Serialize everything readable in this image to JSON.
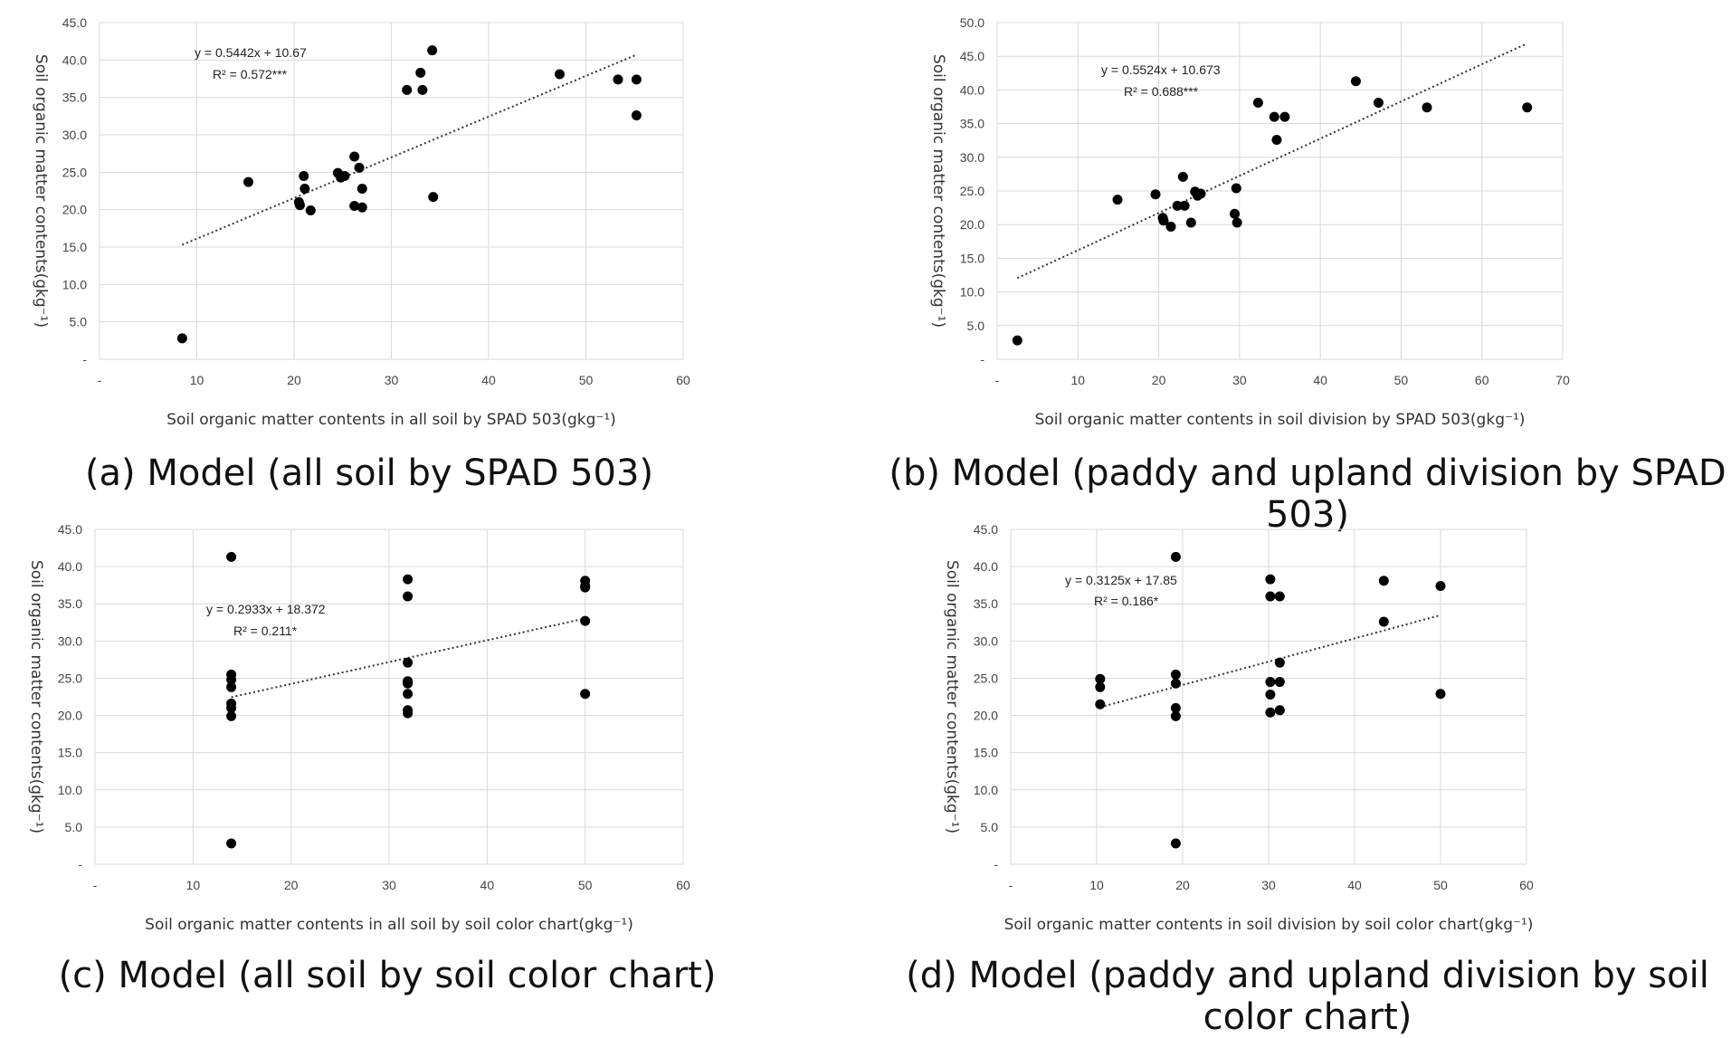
{
  "colors": {
    "grid": "#d9d9d9",
    "point": "#000000",
    "trendline": "#333333"
  },
  "chart_data": [
    {
      "id": "a",
      "type": "scatter",
      "caption": "(a) Model (all soil by SPAD 503)",
      "xlabel": "Soil organic matter contents in all soil by SPAD 503(gkg⁻¹)",
      "ylabel": "Soil organic matter contents(gkg⁻¹)",
      "xlim": [
        0,
        60
      ],
      "ylim": [
        0,
        45
      ],
      "xticks": [
        "-",
        "10",
        "20",
        "30",
        "40",
        "50",
        "60"
      ],
      "yticks": [
        "-",
        "5.0",
        "10.0",
        "15.0",
        "20.0",
        "25.0",
        "30.0",
        "35.0",
        "40.0",
        "45.0"
      ],
      "x_tick_step": 10,
      "y_tick_step": 5,
      "equation": "y = 0.5442x + 10.67",
      "r_squared": "R² = 0.572***",
      "trendline": {
        "slope": 0.5442,
        "intercept": 10.67,
        "x_range": [
          8.5,
          55.2
        ]
      },
      "points": [
        [
          8.5,
          2.8
        ],
        [
          15.3,
          23.7
        ],
        [
          20.5,
          21.0
        ],
        [
          20.6,
          20.6
        ],
        [
          21.0,
          24.5
        ],
        [
          21.1,
          22.8
        ],
        [
          21.7,
          19.9
        ],
        [
          24.5,
          24.9
        ],
        [
          24.8,
          24.3
        ],
        [
          25.2,
          24.5
        ],
        [
          26.2,
          27.1
        ],
        [
          26.2,
          20.5
        ],
        [
          26.7,
          25.6
        ],
        [
          27.0,
          22.8
        ],
        [
          27.0,
          20.3
        ],
        [
          31.6,
          36.0
        ],
        [
          33.0,
          38.3
        ],
        [
          33.2,
          36.0
        ],
        [
          34.2,
          41.3
        ],
        [
          34.3,
          21.7
        ],
        [
          47.3,
          38.1
        ],
        [
          53.3,
          37.4
        ],
        [
          55.2,
          37.4
        ],
        [
          55.2,
          32.6
        ]
      ]
    },
    {
      "id": "b",
      "type": "scatter",
      "caption": "(b) Model (paddy and upland division by SPAD 503)",
      "xlabel": "Soil organic matter contents in soil division by SPAD 503(gkg⁻¹)",
      "ylabel": "Soil organic matter contents(gkg⁻¹)",
      "xlim": [
        0,
        70
      ],
      "ylim": [
        0,
        50
      ],
      "xticks": [
        "-",
        "10",
        "20",
        "30",
        "40",
        "50",
        "60",
        "70"
      ],
      "yticks": [
        "-",
        "5.0",
        "10.0",
        "15.0",
        "20.0",
        "25.0",
        "30.0",
        "35.0",
        "40.0",
        "45.0",
        "50.0"
      ],
      "x_tick_step": 10,
      "y_tick_step": 5,
      "equation": "y = 0.5524x + 10.673",
      "r_squared": "R² = 0.688***",
      "trendline": {
        "slope": 0.5524,
        "intercept": 10.673,
        "x_range": [
          2.5,
          65.5
        ]
      },
      "points": [
        [
          2.5,
          2.8
        ],
        [
          14.9,
          23.7
        ],
        [
          19.6,
          24.5
        ],
        [
          20.5,
          21.0
        ],
        [
          20.6,
          20.6
        ],
        [
          21.5,
          19.7
        ],
        [
          22.3,
          22.8
        ],
        [
          23.0,
          27.1
        ],
        [
          23.2,
          22.8
        ],
        [
          24.0,
          20.3
        ],
        [
          24.5,
          24.9
        ],
        [
          24.8,
          24.3
        ],
        [
          25.2,
          24.6
        ],
        [
          29.4,
          21.6
        ],
        [
          29.6,
          25.4
        ],
        [
          29.7,
          20.3
        ],
        [
          32.3,
          38.1
        ],
        [
          34.3,
          36.0
        ],
        [
          34.6,
          32.6
        ],
        [
          35.6,
          36.0
        ],
        [
          44.4,
          41.3
        ],
        [
          47.2,
          38.1
        ],
        [
          53.2,
          37.4
        ],
        [
          65.6,
          37.4
        ]
      ]
    },
    {
      "id": "c",
      "type": "scatter",
      "caption": "(c) Model (all soil by soil color chart)",
      "xlabel": "Soil organic matter contents in all soil by soil color chart(gkg⁻¹)",
      "ylabel": "Soil organic matter contents(gkg⁻¹)",
      "xlim": [
        0,
        60
      ],
      "ylim": [
        0,
        45
      ],
      "xticks": [
        "-",
        "10",
        "20",
        "30",
        "40",
        "50",
        "60"
      ],
      "yticks": [
        "-",
        "5.0",
        "10.0",
        "15.0",
        "20.0",
        "25.0",
        "30.0",
        "35.0",
        "40.0",
        "45.0"
      ],
      "x_tick_step": 10,
      "y_tick_step": 5,
      "equation": "y = 0.2933x + 18.372",
      "r_squared": "R² = 0.211*",
      "trendline": {
        "slope": 0.2933,
        "intercept": 18.372,
        "x_range": [
          13.9,
          50.0
        ]
      },
      "points": [
        [
          13.9,
          41.3
        ],
        [
          13.9,
          25.5
        ],
        [
          13.9,
          24.8
        ],
        [
          13.9,
          23.8
        ],
        [
          13.9,
          21.6
        ],
        [
          13.9,
          21.0
        ],
        [
          13.9,
          19.9
        ],
        [
          13.9,
          2.8
        ],
        [
          31.9,
          38.3
        ],
        [
          31.9,
          36.0
        ],
        [
          31.9,
          27.1
        ],
        [
          31.9,
          24.6
        ],
        [
          31.9,
          24.3
        ],
        [
          31.9,
          22.9
        ],
        [
          31.9,
          20.7
        ],
        [
          31.9,
          20.3
        ],
        [
          50.0,
          38.1
        ],
        [
          50.0,
          37.4
        ],
        [
          50.0,
          37.2
        ],
        [
          50.0,
          32.7
        ],
        [
          50.0,
          22.9
        ]
      ]
    },
    {
      "id": "d",
      "type": "scatter",
      "caption": "(d) Model (paddy and upland division by soil color chart)",
      "xlabel": "Soil organic matter contents in soil division by soil color chart(gkg⁻¹)",
      "ylabel": "Soil organic matter contents(gkg⁻¹)",
      "xlim": [
        0,
        60
      ],
      "ylim": [
        0,
        45
      ],
      "xticks": [
        "-",
        "10",
        "20",
        "30",
        "40",
        "50",
        "60"
      ],
      "yticks": [
        "-",
        "5.0",
        "10.0",
        "15.0",
        "20.0",
        "25.0",
        "30.0",
        "35.0",
        "40.0",
        "45.0"
      ],
      "x_tick_step": 10,
      "y_tick_step": 5,
      "equation": "y = 0.3125x + 17.85",
      "r_squared": "R² = 0.186*",
      "trendline": {
        "slope": 0.3125,
        "intercept": 17.85,
        "x_range": [
          10.4,
          50.0
        ]
      },
      "points": [
        [
          10.4,
          24.9
        ],
        [
          10.4,
          23.8
        ],
        [
          10.4,
          21.5
        ],
        [
          19.2,
          41.3
        ],
        [
          19.2,
          25.5
        ],
        [
          19.2,
          24.3
        ],
        [
          19.2,
          21.0
        ],
        [
          19.2,
          19.9
        ],
        [
          19.2,
          2.8
        ],
        [
          30.2,
          38.3
        ],
        [
          30.2,
          36.0
        ],
        [
          30.2,
          24.5
        ],
        [
          30.2,
          22.8
        ],
        [
          30.2,
          20.4
        ],
        [
          31.3,
          36.0
        ],
        [
          31.3,
          27.1
        ],
        [
          31.3,
          24.5
        ],
        [
          31.3,
          20.7
        ],
        [
          43.4,
          38.1
        ],
        [
          43.4,
          32.6
        ],
        [
          50.0,
          37.4
        ],
        [
          50.0,
          22.9
        ]
      ]
    }
  ]
}
